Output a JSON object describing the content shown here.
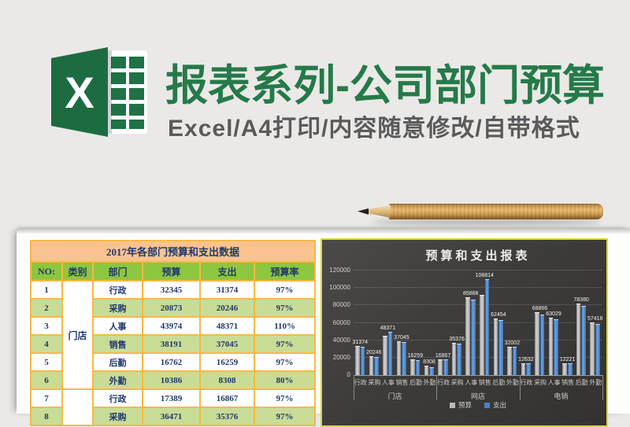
{
  "header": {
    "title": "报表系列-公司部门预算",
    "subtitle": "Excel/A4打印/内容随意修改/自带格式",
    "logo_letter": "X"
  },
  "table": {
    "title": "2017年各部门预算和支出数据",
    "columns": {
      "no": "NO:",
      "cat": "类别",
      "dept": "部门",
      "budget": "预算",
      "spend": "支出",
      "rate": "预算率"
    },
    "rows": [
      {
        "no": "1",
        "cat": "门店",
        "cat_span": 6,
        "dept": "行政",
        "budget": "32345",
        "spend": "31374",
        "rate": "97%"
      },
      {
        "no": "2",
        "dept": "采购",
        "budget": "20873",
        "spend": "20246",
        "rate": "97%"
      },
      {
        "no": "3",
        "dept": "人事",
        "budget": "43974",
        "spend": "48371",
        "rate": "110%"
      },
      {
        "no": "4",
        "dept": "销售",
        "budget": "38191",
        "spend": "37045",
        "rate": "97%"
      },
      {
        "no": "5",
        "dept": "后勤",
        "budget": "16762",
        "spend": "16259",
        "rate": "97%"
      },
      {
        "no": "6",
        "dept": "外勤",
        "budget": "10386",
        "spend": "8308",
        "rate": "80%"
      },
      {
        "no": "7",
        "cat": "",
        "cat_span": 2,
        "dept": "行政",
        "budget": "17389",
        "spend": "16867",
        "rate": "97%"
      },
      {
        "no": "8",
        "dept": "采购",
        "budget": "36471",
        "spend": "35376",
        "rate": "97%"
      }
    ]
  },
  "chart_data": {
    "type": "bar",
    "title": "预算和支出报表",
    "groups": [
      "门店",
      "网店",
      "电销"
    ],
    "dept_labels": [
      "行政",
      "采购",
      "人事",
      "销售",
      "后勤",
      "外勤"
    ],
    "ylim": [
      0,
      120000
    ],
    "yticks": [
      0,
      20000,
      40000,
      60000,
      80000,
      100000,
      120000
    ],
    "legend_position": "bottom",
    "grid": true,
    "series": [
      {
        "name": "预算",
        "color": "#b9b9b9",
        "show_labels": false,
        "values": [
          32345,
          20873,
          43974,
          38191,
          16762,
          10386,
          17389,
          36471,
          88500,
          91500,
          64400,
          31500,
          13000,
          71000,
          65000,
          12600,
          81000,
          59200
        ]
      },
      {
        "name": "支出",
        "color": "#4a80c4",
        "show_labels": true,
        "values": [
          31374,
          20246,
          48371,
          37045,
          16259,
          8308,
          16867,
          35376,
          85888,
          108814,
          62454,
          32002,
          12632,
          68866,
          63029,
          12221,
          78380,
          57418
        ]
      }
    ]
  }
}
